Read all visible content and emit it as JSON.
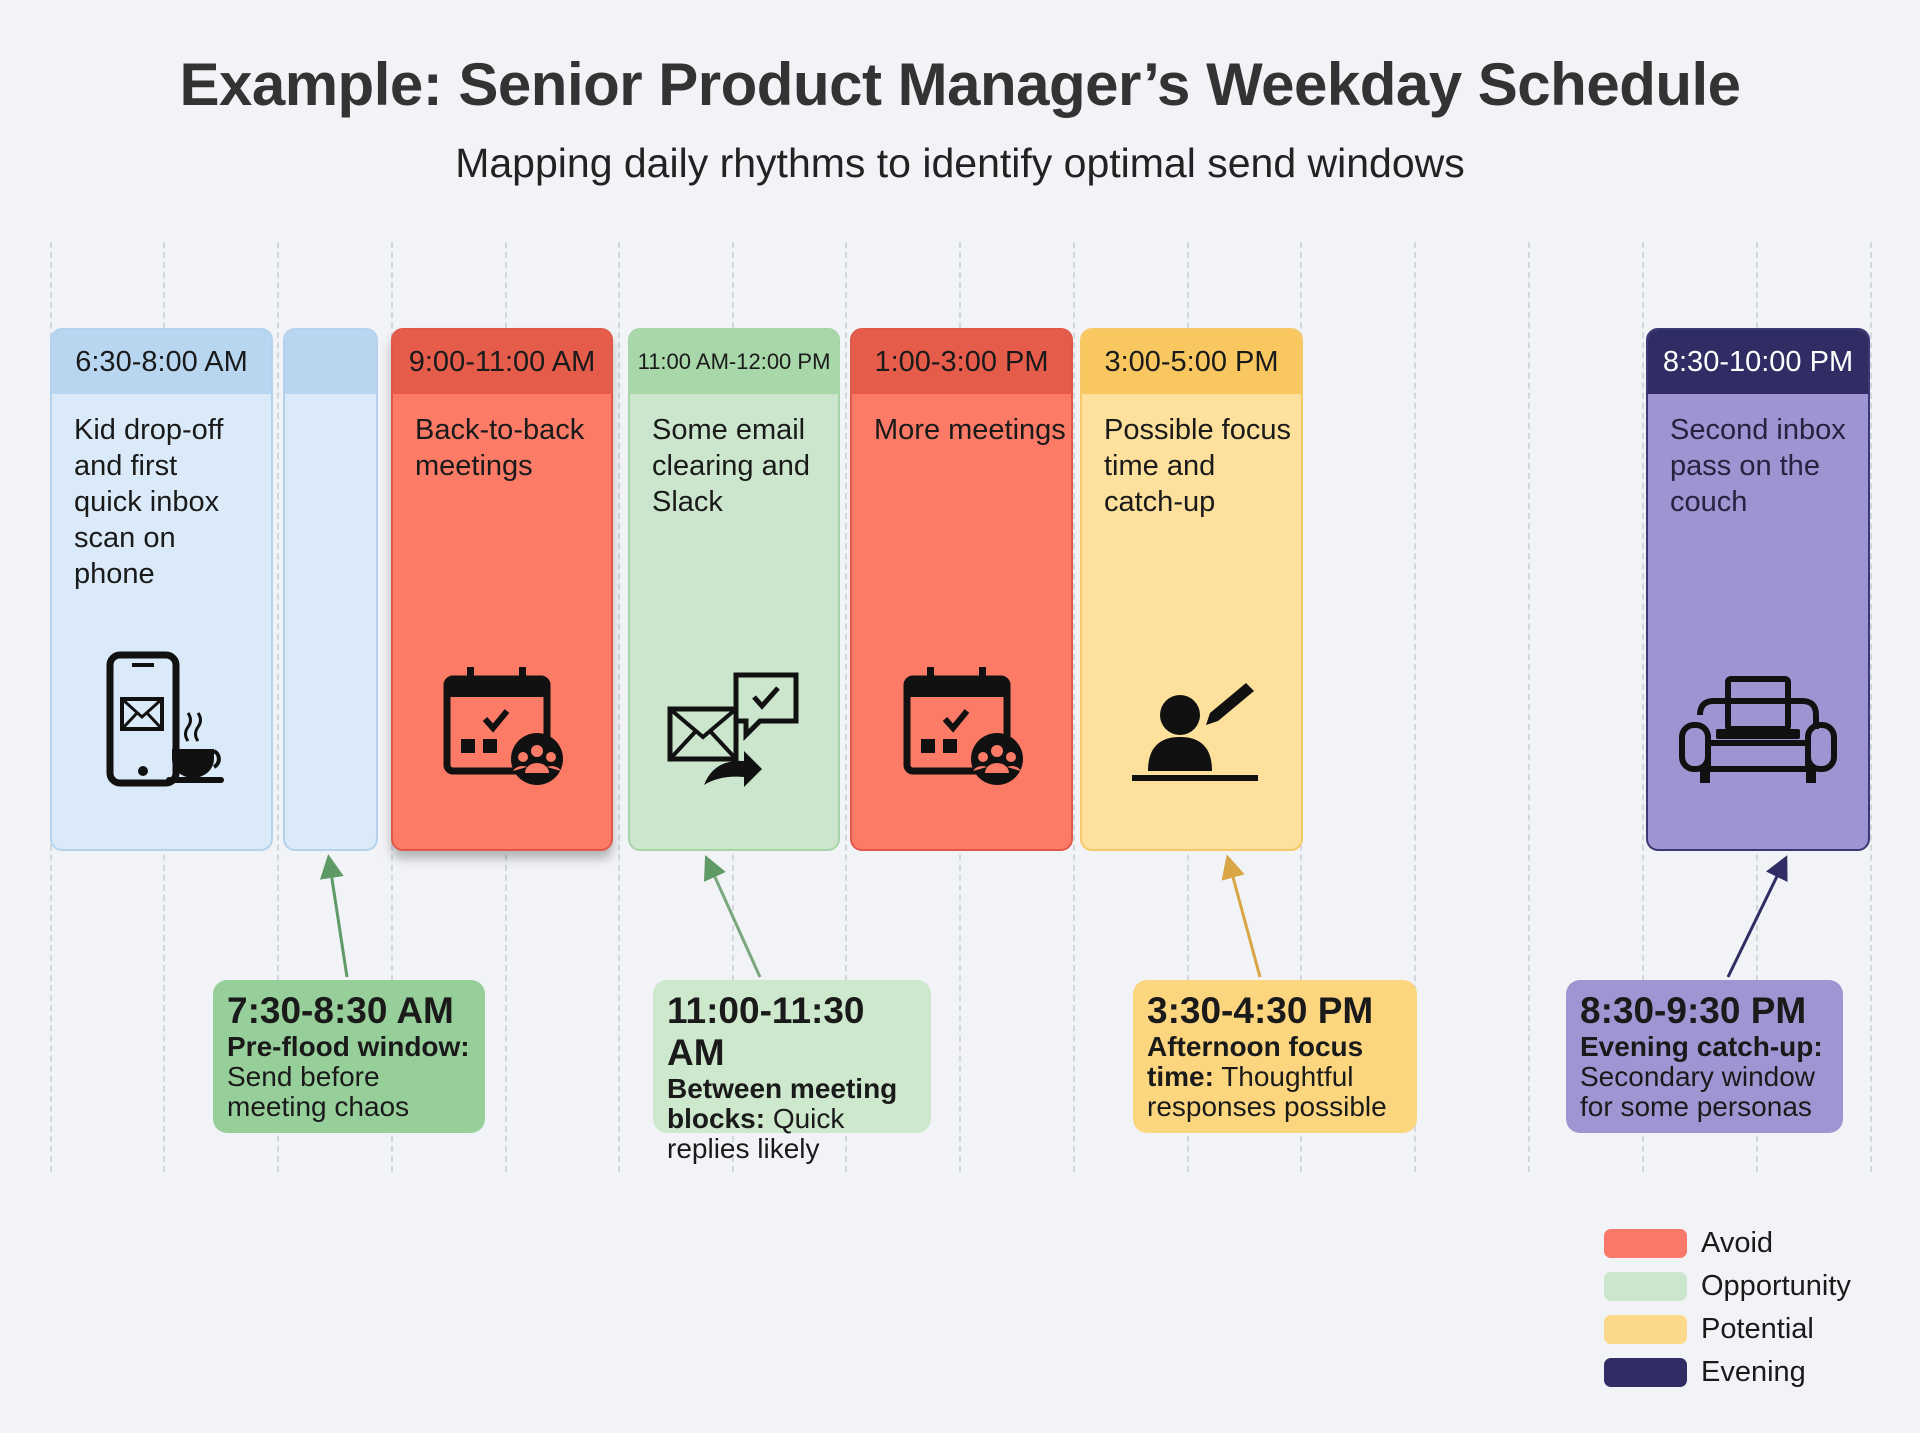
{
  "title": "Example: Senior Product Manager’s Weekday Schedule",
  "subtitle": "Mapping daily rhythms to identify optimal send windows",
  "blocks": [
    {
      "time": "6:30-8:00 AM",
      "text": "Kid drop-off and first quick inbox scan on phone",
      "icon": "phone-coffee-icon",
      "category": "morning"
    },
    {
      "time": "",
      "text": "",
      "icon": "",
      "category": "morning"
    },
    {
      "time": "9:00-11:00 AM",
      "text": "Back-to-back meetings",
      "icon": "calendar-meeting-icon",
      "category": "Avoid"
    },
    {
      "time": "11:00 AM-12:00 PM",
      "text": "Some email clearing and Slack",
      "icon": "email-chat-icon",
      "category": "Opportunity"
    },
    {
      "time": "1:00-3:00 PM",
      "text": "More meetings",
      "icon": "calendar-meeting-icon",
      "category": "Avoid"
    },
    {
      "time": "3:00-5:00 PM",
      "text": "Possible focus time and catch-up",
      "icon": "person-writing-icon",
      "category": "Potential"
    },
    {
      "time": "8:30-10:00 PM",
      "text": "Second inbox pass on the couch",
      "icon": "laptop-couch-icon",
      "category": "Evening"
    }
  ],
  "callouts": [
    {
      "time": "7:30-8:30 AM",
      "label": "Pre-flood window:",
      "text": "Send before meeting chaos"
    },
    {
      "time": "11:00-11:30 AM",
      "label": "Between meeting blocks:",
      "text": "Quick replies likely"
    },
    {
      "time": "3:30-4:30 PM",
      "label": "Afternoon focus time:",
      "text": "Thoughtful responses possible"
    },
    {
      "time": "8:30-9:30 PM",
      "label": "Evening catch-up:",
      "text": "Secondary window for some personas"
    }
  ],
  "legend": [
    {
      "label": "Avoid",
      "color": "#f9786a"
    },
    {
      "label": "Opportunity",
      "color": "#cbe6cc"
    },
    {
      "label": "Potential",
      "color": "#fcd88a"
    },
    {
      "label": "Evening",
      "color": "#2f2d63"
    }
  ]
}
